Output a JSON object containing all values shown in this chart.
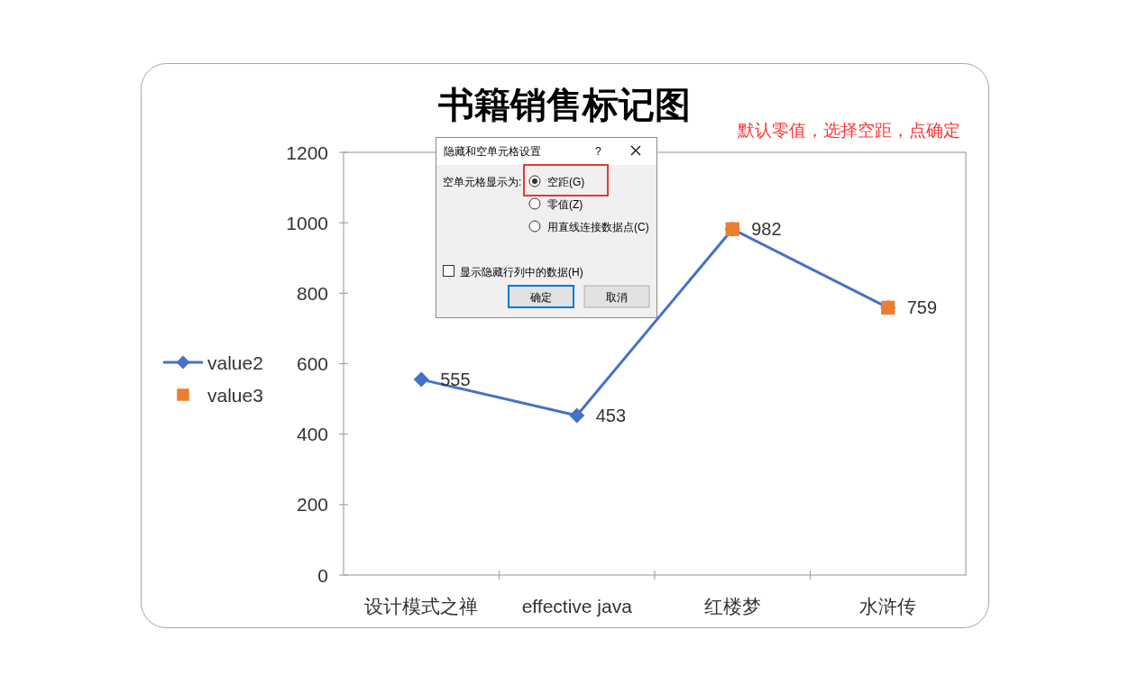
{
  "chart_data": [
    {
      "type": "line",
      "title": "书籍销售标记图",
      "annotations": [
        "默认零值，选择空距，点确定"
      ],
      "categories": [
        "设计模式之禅",
        "effective java",
        "红楼梦",
        "水浒传"
      ],
      "series": [
        {
          "name": "value2",
          "type": "line",
          "color": "#4472c4",
          "marker": "diamond",
          "values": [
            555,
            453,
            982,
            759
          ],
          "value_labels": [
            "555",
            "453",
            null,
            null
          ]
        },
        {
          "name": "value3",
          "type": "scatter",
          "color": "#ed7d31",
          "marker": "square",
          "values": [
            null,
            null,
            982,
            759
          ],
          "value_labels": [
            null,
            null,
            "982",
            "759"
          ]
        }
      ],
      "ylim": [
        0,
        1200
      ],
      "yticks": [
        0,
        200,
        400,
        600,
        800,
        1000,
        1200
      ],
      "legend": "left"
    },
    {
      "type": "other",
      "title": "隐藏和空单元格设置",
      "annotations": [
        "?",
        "空单元格显示为:",
        "空距(G)",
        "零值(Z)",
        "用直线连接数据点(C)",
        "显示隐藏行列中的数据(H)",
        "确定",
        "取消"
      ]
    }
  ]
}
